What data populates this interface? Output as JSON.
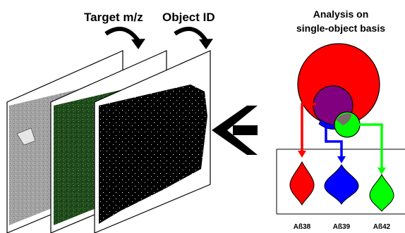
{
  "labels": {
    "target_mz": "Target m/z",
    "object_id": "Object ID",
    "analysis_line1": "Analysis on",
    "analysis_line2": "single-object basis"
  },
  "violins": [
    {
      "label": "Aß38",
      "color": "#ff0000"
    },
    {
      "label": "Aß39",
      "color": "#0000ff"
    },
    {
      "label": "Aß42",
      "color": "#00ff00"
    }
  ],
  "colors": {
    "red": "#ff0000",
    "blue": "#0000ff",
    "purple": "#800080",
    "green": "#00ff00",
    "gray_overlap": "#7a6a6a",
    "tissue_gray": "#9a9a9a",
    "tissue_green": "#1f4f1f",
    "tissue_black": "#000000"
  }
}
